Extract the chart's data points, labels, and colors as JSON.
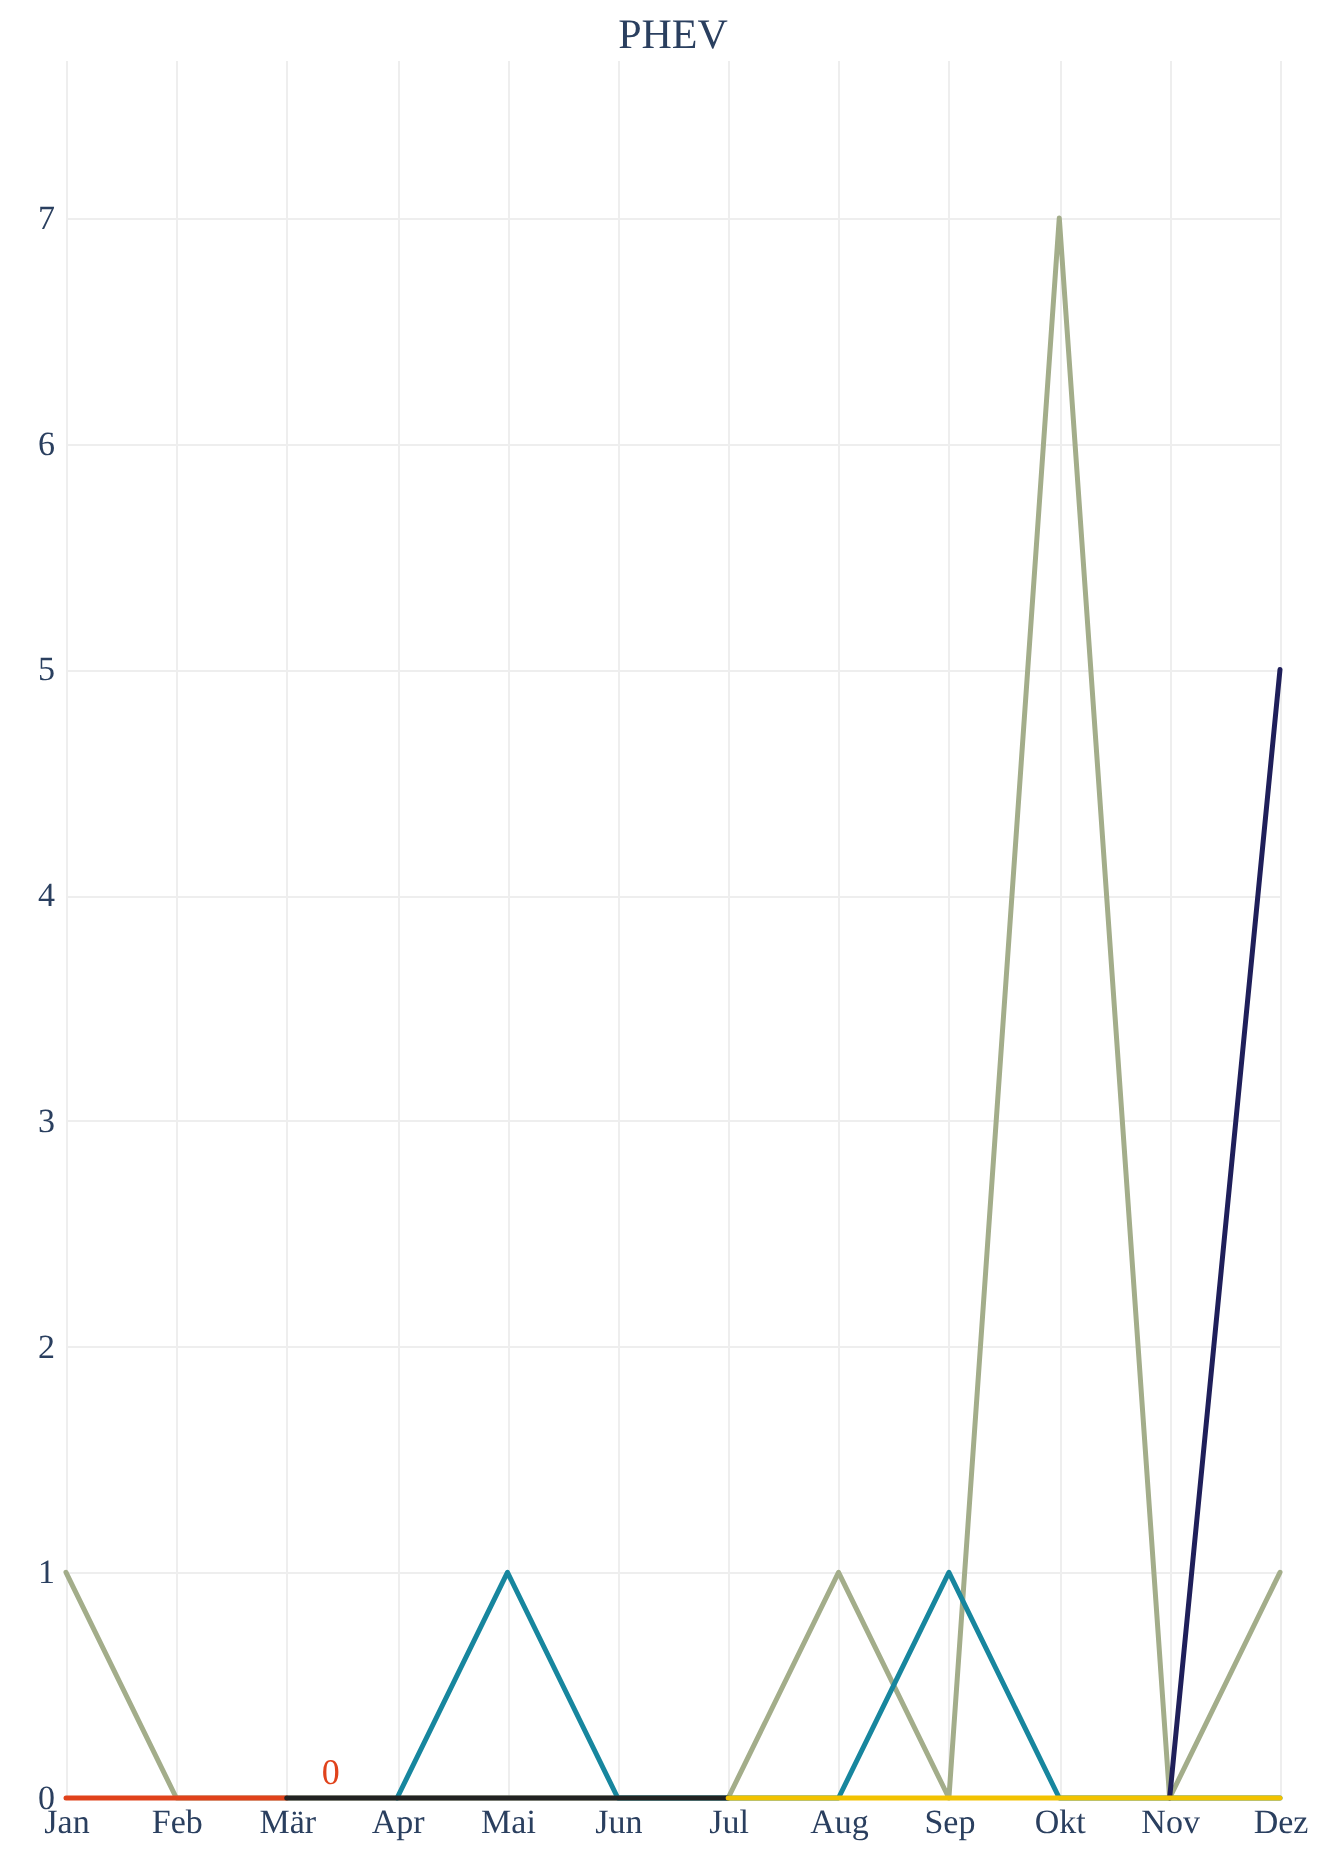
{
  "chart_data": {
    "type": "line",
    "title": "PHEV",
    "categories": [
      "Jan",
      "Feb",
      "Mär",
      "Apr",
      "Mai",
      "Jun",
      "Jul",
      "Aug",
      "Sep",
      "Okt",
      "Nov",
      "Dez"
    ],
    "series": [
      {
        "color": "#a3ad8a",
        "values": [
          1,
          0,
          0,
          0,
          0,
          0,
          0,
          1,
          0,
          7,
          0,
          1
        ]
      },
      {
        "color": "#17869e",
        "values": [
          null,
          null,
          null,
          0,
          1,
          0,
          0,
          0,
          1,
          0,
          0,
          0
        ]
      },
      {
        "color": "#1f1f5a",
        "values": [
          null,
          null,
          null,
          null,
          null,
          null,
          null,
          null,
          null,
          null,
          0,
          5
        ]
      },
      {
        "color": "#e0421b",
        "values": [
          0,
          0,
          0,
          null,
          null,
          null,
          null,
          null,
          null,
          null,
          null,
          null
        ]
      },
      {
        "color": "#222222",
        "values": [
          null,
          null,
          0,
          0,
          0,
          0,
          0,
          null,
          null,
          null,
          null,
          null
        ]
      },
      {
        "color": "#f2c200",
        "values": [
          null,
          null,
          null,
          null,
          null,
          null,
          0,
          0,
          0,
          0,
          0,
          0
        ]
      }
    ],
    "annotations": [
      {
        "text": "0",
        "x": "Mär",
        "y": 0
      }
    ],
    "ylim": [
      0,
      7.7
    ],
    "yticks": [
      0,
      1,
      2,
      3,
      4,
      5,
      6,
      7
    ],
    "grid": true
  }
}
